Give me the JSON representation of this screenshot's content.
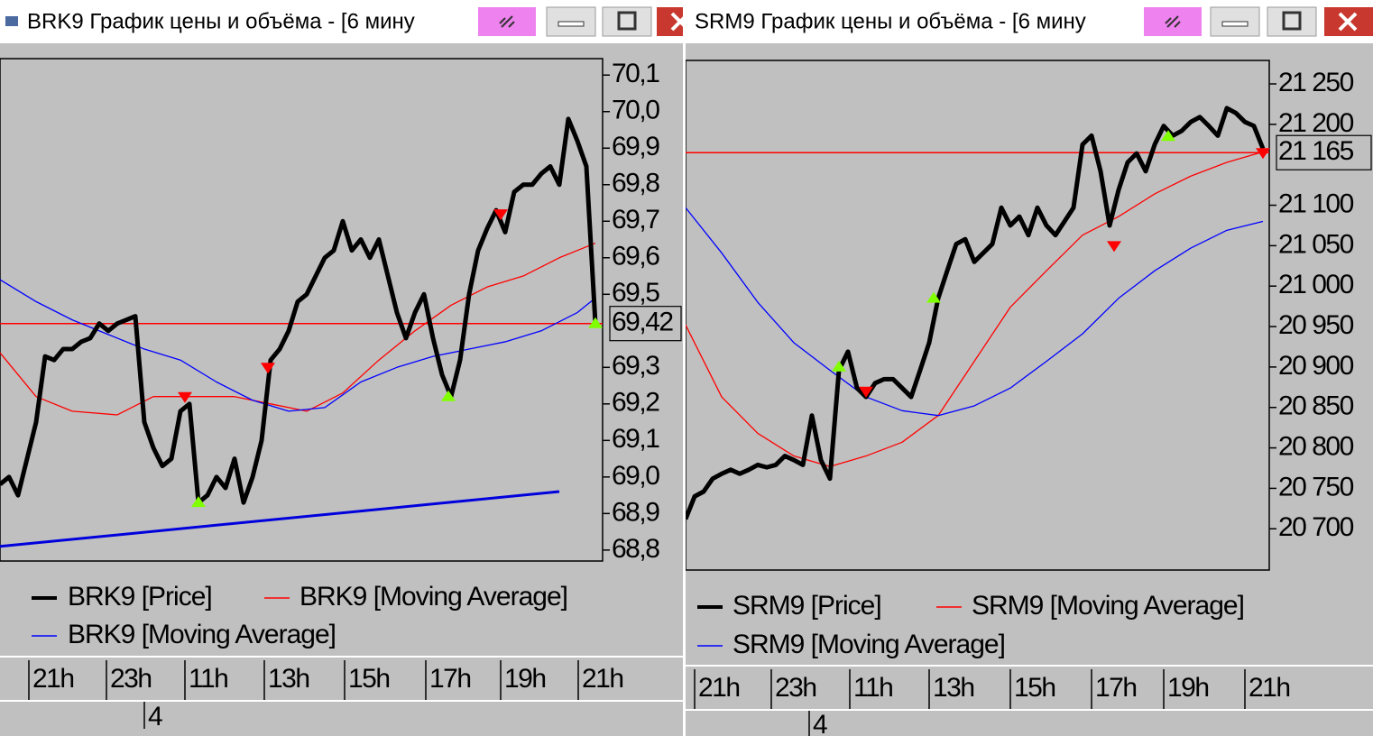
{
  "chart_data": [
    {
      "type": "line",
      "title": "BRK9 График цены и объёма - [6 мину",
      "xlim": [
        0,
        66.8
      ],
      "ylim": [
        68.77,
        70.145
      ],
      "yticks": [
        {
          "value": 70.1,
          "label": "70,1"
        },
        {
          "value": 70.0,
          "label": "70,0"
        },
        {
          "value": 69.9,
          "label": "69,9"
        },
        {
          "value": 69.8,
          "label": "69,8"
        },
        {
          "value": 69.7,
          "label": "69,7"
        },
        {
          "value": 69.6,
          "label": "69,6"
        },
        {
          "value": 69.5,
          "label": "69,5"
        },
        {
          "value": 69.3,
          "label": "69,3"
        },
        {
          "value": 69.2,
          "label": "69,2"
        },
        {
          "value": 69.1,
          "label": "69,1"
        },
        {
          "value": 69.0,
          "label": "69,0"
        },
        {
          "value": 68.9,
          "label": "68,9"
        },
        {
          "value": 68.8,
          "label": "68,8"
        }
      ],
      "xticks": [
        {
          "value": 3.2,
          "label": "21h"
        },
        {
          "value": 11.8,
          "label": "23h"
        },
        {
          "value": 20.5,
          "label": "11h"
        },
        {
          "value": 29.3,
          "label": "13h"
        },
        {
          "value": 38.2,
          "label": "15h"
        },
        {
          "value": 47.2,
          "label": "17h"
        },
        {
          "value": 55.5,
          "label": "19h"
        },
        {
          "value": 64.1,
          "label": "21h"
        }
      ],
      "date_x": 16,
      "date_label": "4",
      "series": [
        {
          "name": "BRK9 [Price]",
          "color": "#000000",
          "x": [
            0,
            1,
            2,
            3,
            4,
            5,
            6,
            7,
            8,
            9,
            10,
            11,
            12,
            13,
            14,
            15,
            16,
            17,
            18,
            19,
            20,
            21,
            22,
            23,
            24,
            25,
            26,
            27,
            28,
            29,
            30,
            31,
            32,
            33,
            34,
            35,
            36,
            37,
            38,
            39,
            40,
            41,
            42,
            43,
            44,
            45,
            46,
            47,
            48,
            49,
            50,
            51,
            52,
            53,
            54,
            55,
            56,
            57,
            58,
            59,
            60,
            61,
            62,
            63,
            64,
            65,
            66
          ],
          "values": [
            68.98,
            69.0,
            68.95,
            69.05,
            69.15,
            69.33,
            69.32,
            69.35,
            69.35,
            69.37,
            69.38,
            69.42,
            69.4,
            69.42,
            69.43,
            69.44,
            69.15,
            69.08,
            69.03,
            69.05,
            69.18,
            69.2,
            68.93,
            68.95,
            69.0,
            68.97,
            69.05,
            68.93,
            69.0,
            69.1,
            69.32,
            69.35,
            69.4,
            69.48,
            69.5,
            69.55,
            69.6,
            69.62,
            69.7,
            69.62,
            69.65,
            69.6,
            69.65,
            69.55,
            69.45,
            69.38,
            69.45,
            69.5,
            69.38,
            69.28,
            69.22,
            69.32,
            69.5,
            69.62,
            69.68,
            69.73,
            69.67,
            69.78,
            69.8,
            69.8,
            69.83,
            69.85,
            69.8,
            69.98,
            69.92,
            69.85,
            69.42
          ]
        },
        {
          "name": "BRK9 [Moving Average]",
          "color": "#ff0000",
          "x": [
            0,
            4,
            8,
            13,
            17,
            21,
            26,
            30,
            34,
            38,
            42,
            46,
            50,
            54,
            58,
            62,
            66
          ],
          "values": [
            69.34,
            69.22,
            69.18,
            69.17,
            69.22,
            69.22,
            69.22,
            69.2,
            69.18,
            69.23,
            69.32,
            69.4,
            69.47,
            69.52,
            69.55,
            69.6,
            69.64
          ]
        },
        {
          "name": "BRK9 [Moving Average]",
          "color": "#0000ff",
          "x": [
            0,
            4,
            8,
            12,
            16,
            20,
            24,
            28,
            32,
            36,
            40,
            44,
            48,
            52,
            56,
            60,
            64,
            66
          ],
          "values": [
            69.54,
            69.48,
            69.43,
            69.39,
            69.35,
            69.32,
            69.26,
            69.21,
            69.18,
            69.19,
            69.26,
            69.3,
            69.33,
            69.35,
            69.37,
            69.4,
            69.45,
            69.49
          ]
        }
      ],
      "trendline": {
        "color": "#0000dd",
        "x": [
          0,
          62
        ],
        "values": [
          68.81,
          68.96
        ]
      },
      "price_level": 69.42,
      "price_level_label": "69,42",
      "price_level_color": "#ff0000",
      "up_markers": {
        "color": "#80ff00",
        "x": [
          22,
          49.7,
          66
        ],
        "values": [
          68.93,
          69.22,
          69.42
        ]
      },
      "down_markers": {
        "color": "#ff0000",
        "x": [
          20.5,
          29.7,
          55.5
        ],
        "values": [
          69.22,
          69.3,
          69.72
        ]
      }
    },
    {
      "type": "line",
      "title": "SRM9 График цены и объёма - [6 мину",
      "xlim": [
        0,
        64.7
      ],
      "ylim": [
        20649,
        21279
      ],
      "yticks": [
        {
          "value": 21250,
          "label": "21 250"
        },
        {
          "value": 21200,
          "label": "21 200"
        },
        {
          "value": 21100,
          "label": "21 100"
        },
        {
          "value": 21050,
          "label": "21 050"
        },
        {
          "value": 21000,
          "label": "21 000"
        },
        {
          "value": 20950,
          "label": "20 950"
        },
        {
          "value": 20900,
          "label": "20 900"
        },
        {
          "value": 20850,
          "label": "20 850"
        },
        {
          "value": 20800,
          "label": "20 800"
        },
        {
          "value": 20750,
          "label": "20 750"
        },
        {
          "value": 20700,
          "label": "20 700"
        }
      ],
      "xticks": [
        {
          "value": 1.0,
          "label": "21h"
        },
        {
          "value": 9.5,
          "label": "23h"
        },
        {
          "value": 18.2,
          "label": "11h"
        },
        {
          "value": 27.0,
          "label": "13h"
        },
        {
          "value": 36.0,
          "label": "15h"
        },
        {
          "value": 45.0,
          "label": "17h"
        },
        {
          "value": 53.0,
          "label": "19h"
        },
        {
          "value": 62.0,
          "label": "21h"
        }
      ],
      "date_x": 13.7,
      "date_label": "4",
      "series": [
        {
          "name": "SRM9 [Price]",
          "color": "#000000",
          "x": [
            0,
            1,
            2,
            3,
            4,
            5,
            6,
            7,
            8,
            9,
            10,
            11,
            12,
            13,
            14,
            15,
            16,
            17,
            18,
            19,
            20,
            21,
            22,
            23,
            24,
            25,
            26,
            27,
            28,
            29,
            30,
            31,
            32,
            33,
            34,
            35,
            36,
            37,
            38,
            39,
            40,
            41,
            42,
            43,
            44,
            45,
            46,
            47,
            48,
            49,
            50,
            51,
            52,
            53,
            54,
            55,
            56,
            57,
            58,
            59,
            60,
            61,
            62,
            63,
            64
          ],
          "values": [
            20712,
            20740,
            20746,
            20762,
            20768,
            20773,
            20768,
            20773,
            20779,
            20776,
            20779,
            20790,
            20785,
            20779,
            20840,
            20785,
            20762,
            20896,
            20919,
            20874,
            20863,
            20880,
            20885,
            20885,
            20874,
            20863,
            20896,
            20930,
            20985,
            21019,
            21052,
            21058,
            21030,
            21041,
            21052,
            21097,
            21075,
            21086,
            21063,
            21097,
            21075,
            21063,
            21080,
            21097,
            21175,
            21186,
            21142,
            21075,
            21119,
            21153,
            21164,
            21142,
            21175,
            21198,
            21186,
            21192,
            21203,
            21209,
            21198,
            21186,
            21220,
            21214,
            21203,
            21198,
            21170
          ]
        },
        {
          "name": "SRM9 [Moving Average]",
          "color": "#ff0000",
          "x": [
            0,
            4,
            8,
            12,
            16,
            20,
            24,
            28,
            32,
            36,
            40,
            44,
            48,
            52,
            56,
            60,
            64
          ],
          "values": [
            20952,
            20863,
            20818,
            20790,
            20777,
            20790,
            20807,
            20840,
            20907,
            20974,
            21019,
            21063,
            21086,
            21114,
            21136,
            21153,
            21166
          ]
        },
        {
          "name": "SRM9 [Moving Average]",
          "color": "#0000ff",
          "x": [
            0,
            4,
            8,
            12,
            16,
            20,
            24,
            28,
            32,
            36,
            40,
            44,
            48,
            52,
            56,
            60,
            64
          ],
          "values": [
            21097,
            21041,
            20980,
            20930,
            20896,
            20863,
            20846,
            20840,
            20852,
            20874,
            20907,
            20941,
            20985,
            21019,
            21047,
            21069,
            21080
          ]
        }
      ],
      "price_level": 21165,
      "price_level_label": "21 165",
      "price_level_color": "#ff0000",
      "up_markers": {
        "color": "#80ff00",
        "x": [
          17,
          27.5,
          53.5
        ],
        "values": [
          20900,
          20985,
          21185
        ]
      },
      "down_markers": {
        "color": "#ff0000",
        "x": [
          20,
          47.5,
          64
        ],
        "values": [
          20870,
          21050,
          21165
        ]
      }
    }
  ]
}
